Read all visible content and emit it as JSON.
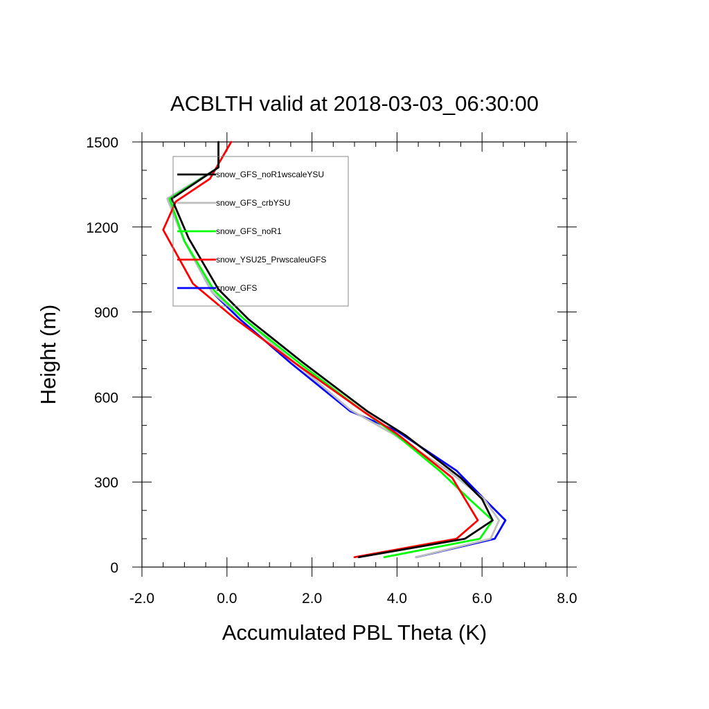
{
  "chart_data": {
    "type": "line",
    "title": "ACBLTH valid at 2018-03-03_06:30:00",
    "xlabel": "Accumulated PBL Theta (K)",
    "ylabel": "Height (m)",
    "xlim": [
      -2.0,
      8.0
    ],
    "ylim": [
      0,
      1500
    ],
    "xticks": [
      "-2.0",
      "0.0",
      "2.0",
      "4.0",
      "6.0",
      "8.0"
    ],
    "yticks": [
      "0",
      "300",
      "600",
      "900",
      "1200",
      "1500"
    ],
    "grid": false,
    "legend_position": "top-left",
    "series": [
      {
        "name": "snow_GFS_noR1wscaleYSU",
        "color": "#000000",
        "points": [
          [
            3.1,
            35
          ],
          [
            5.6,
            100
          ],
          [
            6.25,
            165
          ],
          [
            6.0,
            240
          ],
          [
            5.5,
            315
          ],
          [
            4.2,
            465
          ],
          [
            3.3,
            550
          ],
          [
            1.8,
            720
          ],
          [
            0.5,
            875
          ],
          [
            -0.2,
            980
          ],
          [
            -0.9,
            1160
          ],
          [
            -1.3,
            1300
          ],
          [
            -0.2,
            1410
          ],
          [
            -0.2,
            1500
          ]
        ]
      },
      {
        "name": "snow_GFS_crbYSU",
        "color": "#bebebe",
        "points": [
          [
            4.45,
            35
          ],
          [
            6.2,
            100
          ],
          [
            6.4,
            165
          ],
          [
            6.05,
            240
          ],
          [
            5.2,
            340
          ],
          [
            3.9,
            470
          ],
          [
            2.9,
            555
          ],
          [
            1.6,
            720
          ],
          [
            0.4,
            875
          ],
          [
            -0.35,
            970
          ],
          [
            -1.0,
            1150
          ],
          [
            -1.4,
            1300
          ],
          [
            -0.3,
            1400
          ]
        ]
      },
      {
        "name": "snow_GFS_noR1",
        "color": "#00ff00",
        "points": [
          [
            3.7,
            35
          ],
          [
            5.95,
            100
          ],
          [
            6.25,
            165
          ],
          [
            5.7,
            240
          ],
          [
            5.0,
            340
          ],
          [
            3.95,
            470
          ],
          [
            3.2,
            550
          ],
          [
            1.7,
            720
          ],
          [
            0.4,
            875
          ],
          [
            -0.3,
            975
          ],
          [
            -1.0,
            1150
          ],
          [
            -1.35,
            1300
          ],
          [
            -0.3,
            1400
          ]
        ]
      },
      {
        "name": "snow_YSU25_PrwscaleuGFS",
        "color": "#ff0000",
        "points": [
          [
            3.0,
            35
          ],
          [
            5.4,
            100
          ],
          [
            5.9,
            165
          ],
          [
            5.6,
            240
          ],
          [
            5.3,
            315
          ],
          [
            4.0,
            470
          ],
          [
            3.2,
            550
          ],
          [
            1.6,
            720
          ],
          [
            0.2,
            875
          ],
          [
            -0.8,
            1000
          ],
          [
            -1.5,
            1190
          ],
          [
            -1.2,
            1290
          ],
          [
            -0.4,
            1370
          ],
          [
            0.1,
            1500
          ]
        ]
      },
      {
        "name": "snow_GFS",
        "color": "#0000ff",
        "points": [
          [
            4.45,
            35
          ],
          [
            6.3,
            100
          ],
          [
            6.55,
            165
          ],
          [
            6.05,
            240
          ],
          [
            5.4,
            340
          ],
          [
            4.0,
            480
          ],
          [
            2.9,
            550
          ],
          [
            1.5,
            720
          ],
          [
            0.3,
            875
          ],
          [
            -0.35,
            970
          ],
          [
            -1.0,
            1150
          ],
          [
            -1.4,
            1300
          ],
          [
            -0.3,
            1400
          ]
        ]
      }
    ]
  }
}
